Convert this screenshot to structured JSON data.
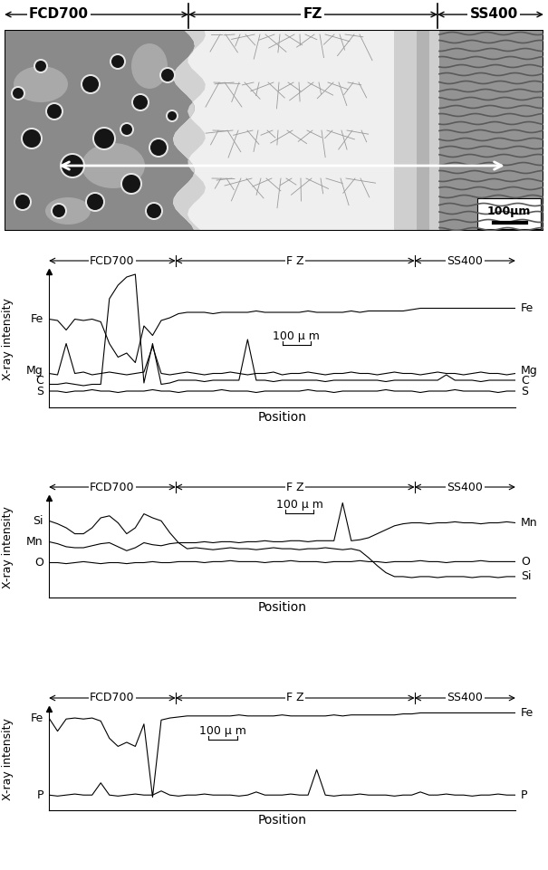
{
  "micrograph": {
    "regions": [
      "FCD700",
      "FZ",
      "SS400"
    ],
    "scale_bar": "100μm"
  },
  "chart_data": [
    {
      "type": "line",
      "x_label": "Position",
      "y_label": "X-ray intensity",
      "x": [
        0,
        30,
        60,
        90,
        120,
        150,
        180,
        210,
        240,
        270,
        300,
        330,
        360,
        390,
        420,
        450,
        480,
        510,
        540,
        570,
        600,
        630,
        660,
        690,
        720,
        750,
        780,
        810,
        840,
        870,
        900,
        930,
        960,
        990,
        1020,
        1050,
        1080,
        1110,
        1140,
        1170,
        1200,
        1230,
        1260,
        1290,
        1320,
        1350,
        1380,
        1410,
        1440,
        1470,
        1500,
        1530,
        1560,
        1590,
        1620
      ],
      "xlim": [
        0,
        1620
      ],
      "ylim": [
        0,
        100
      ],
      "xticks": [],
      "yticks": [],
      "tick_labels": false,
      "regions": [
        {
          "name": "FCD700",
          "start": 0,
          "end": 440
        },
        {
          "name": "F Z",
          "start": 440,
          "end": 1270
        },
        {
          "name": "SS400",
          "start": 1270,
          "end": 1620
        }
      ],
      "scale_bar": {
        "label": "100 μ m",
        "length": 100
      },
      "series": [
        {
          "name": "Fe",
          "color": "#000000",
          "values": [
            65,
            64,
            57,
            65,
            64,
            65,
            63,
            47,
            37,
            40,
            33,
            60,
            53,
            64,
            66,
            69,
            70,
            70,
            70,
            69,
            70,
            70,
            70,
            70,
            71,
            70,
            70,
            70,
            70,
            70,
            71,
            70,
            70,
            70,
            70,
            71,
            70,
            71,
            71,
            71,
            71,
            71,
            72,
            73,
            73,
            73,
            73,
            73,
            73,
            73,
            73,
            73,
            73,
            73,
            73
          ]
        },
        {
          "name": "Mg",
          "color": "#000000",
          "values": [
            25,
            24,
            47,
            25,
            26,
            24,
            25,
            26,
            25,
            24,
            25,
            26,
            45,
            25,
            24,
            25,
            26,
            25,
            24,
            25,
            25,
            26,
            25,
            24,
            25,
            25,
            26,
            24,
            25,
            25,
            26,
            25,
            24,
            25,
            25,
            26,
            25,
            25,
            24,
            25,
            26,
            25,
            25,
            24,
            25,
            26,
            25,
            25,
            24,
            25,
            26,
            25,
            25,
            24,
            25
          ]
        },
        {
          "name": "C",
          "color": "#000000",
          "values": [
            17,
            17,
            18,
            17,
            16,
            17,
            17,
            80,
            90,
            96,
            98,
            18,
            47,
            17,
            18,
            20,
            20,
            20,
            19,
            20,
            20,
            20,
            20,
            50,
            20,
            20,
            19,
            20,
            20,
            20,
            20,
            20,
            19,
            20,
            20,
            20,
            20,
            20,
            20,
            19,
            20,
            20,
            20,
            20,
            20,
            20,
            24,
            20,
            20,
            20,
            19,
            20,
            20,
            20,
            20
          ]
        },
        {
          "name": "S",
          "color": "#000000",
          "values": [
            12,
            12,
            11,
            12,
            12,
            13,
            12,
            12,
            11,
            12,
            12,
            12,
            13,
            12,
            12,
            11,
            12,
            12,
            12,
            12,
            13,
            12,
            12,
            12,
            11,
            12,
            12,
            12,
            12,
            12,
            13,
            12,
            12,
            11,
            12,
            12,
            12,
            12,
            12,
            13,
            12,
            12,
            12,
            11,
            12,
            12,
            12,
            13,
            12,
            12,
            12,
            12,
            11,
            12,
            12
          ]
        }
      ]
    },
    {
      "type": "line",
      "x_label": "Position",
      "y_label": "X-ray intensity",
      "x": [
        0,
        30,
        60,
        90,
        120,
        150,
        180,
        210,
        240,
        270,
        300,
        330,
        360,
        390,
        420,
        450,
        480,
        510,
        540,
        570,
        600,
        630,
        660,
        690,
        720,
        750,
        780,
        810,
        840,
        870,
        900,
        930,
        960,
        990,
        1020,
        1050,
        1080,
        1110,
        1140,
        1170,
        1200,
        1230,
        1260,
        1290,
        1320,
        1350,
        1380,
        1410,
        1440,
        1470,
        1500,
        1530,
        1560,
        1590,
        1620
      ],
      "xlim": [
        0,
        1620
      ],
      "ylim": [
        0,
        100
      ],
      "xticks": [],
      "yticks": [],
      "tick_labels": false,
      "regions": [
        {
          "name": "FCD700",
          "start": 0,
          "end": 440
        },
        {
          "name": "F Z",
          "start": 440,
          "end": 1270
        },
        {
          "name": "SS400",
          "start": 1270,
          "end": 1620
        }
      ],
      "scale_bar": {
        "label": "100 μ m",
        "length": 100
      },
      "series": [
        {
          "name": "Si",
          "color": "#000000",
          "values": [
            77,
            74,
            70,
            64,
            64,
            70,
            80,
            82,
            75,
            64,
            70,
            84,
            80,
            77,
            65,
            55,
            49,
            50,
            49,
            48,
            49,
            50,
            49,
            49,
            48,
            49,
            50,
            49,
            49,
            48,
            49,
            49,
            50,
            49,
            48,
            49,
            47,
            40,
            32,
            25,
            21,
            21,
            20,
            21,
            21,
            20,
            21,
            21,
            21,
            20,
            21,
            21,
            20,
            21,
            21
          ]
        },
        {
          "name": "Mn",
          "color": "#000000",
          "values": [
            56,
            54,
            51,
            50,
            50,
            52,
            54,
            55,
            51,
            47,
            50,
            55,
            53,
            52,
            54,
            55,
            55,
            55,
            56,
            55,
            56,
            56,
            55,
            56,
            56,
            57,
            56,
            56,
            57,
            57,
            56,
            57,
            57,
            57,
            95,
            57,
            58,
            60,
            64,
            68,
            72,
            74,
            75,
            75,
            74,
            75,
            75,
            76,
            75,
            75,
            74,
            75,
            75,
            76,
            75
          ]
        },
        {
          "name": "O",
          "color": "#000000",
          "values": [
            35,
            35,
            34,
            35,
            36,
            35,
            34,
            35,
            35,
            34,
            35,
            35,
            36,
            35,
            35,
            36,
            36,
            36,
            35,
            36,
            36,
            37,
            36,
            36,
            36,
            35,
            36,
            36,
            37,
            36,
            36,
            36,
            35,
            36,
            36,
            36,
            37,
            36,
            36,
            35,
            36,
            36,
            36,
            37,
            36,
            36,
            35,
            36,
            36,
            36,
            37,
            36,
            36,
            36,
            36
          ]
        }
      ]
    },
    {
      "type": "line",
      "x_label": "Position",
      "y_label": "X-ray intensity",
      "x": [
        0,
        30,
        60,
        90,
        120,
        150,
        180,
        210,
        240,
        270,
        300,
        330,
        360,
        390,
        420,
        450,
        480,
        510,
        540,
        570,
        600,
        630,
        660,
        690,
        720,
        750,
        780,
        810,
        840,
        870,
        900,
        930,
        960,
        990,
        1020,
        1050,
        1080,
        1110,
        1140,
        1170,
        1200,
        1230,
        1260,
        1290,
        1320,
        1350,
        1380,
        1410,
        1440,
        1470,
        1500,
        1530,
        1560,
        1590,
        1620
      ],
      "xlim": [
        0,
        1620
      ],
      "ylim": [
        0,
        100
      ],
      "xticks": [],
      "yticks": [],
      "tick_labels": false,
      "regions": [
        {
          "name": "FCD700",
          "start": 0,
          "end": 440
        },
        {
          "name": "F Z",
          "start": 440,
          "end": 1270
        },
        {
          "name": "SS400",
          "start": 1270,
          "end": 1620
        }
      ],
      "scale_bar": {
        "label": "100 μ m",
        "length": 100
      },
      "series": [
        {
          "name": "Fe",
          "color": "#000000",
          "values": [
            91,
            78,
            90,
            91,
            90,
            91,
            88,
            71,
            63,
            67,
            63,
            85,
            13,
            89,
            91,
            92,
            93,
            93,
            93,
            93,
            93,
            93,
            94,
            93,
            93,
            93,
            93,
            94,
            93,
            93,
            93,
            93,
            93,
            94,
            93,
            94,
            94,
            94,
            94,
            94,
            94,
            95,
            95,
            96,
            96,
            96,
            96,
            96,
            96,
            96,
            96,
            96,
            96,
            96,
            96
          ]
        },
        {
          "name": "P",
          "color": "#000000",
          "values": [
            15,
            14,
            15,
            16,
            15,
            15,
            27,
            15,
            14,
            15,
            16,
            15,
            15,
            19,
            15,
            14,
            15,
            15,
            16,
            15,
            15,
            15,
            14,
            15,
            18,
            15,
            15,
            15,
            16,
            15,
            15,
            40,
            15,
            14,
            15,
            15,
            16,
            15,
            15,
            15,
            14,
            15,
            15,
            18,
            15,
            15,
            16,
            15,
            15,
            14,
            15,
            15,
            16,
            15,
            15
          ]
        }
      ]
    }
  ]
}
